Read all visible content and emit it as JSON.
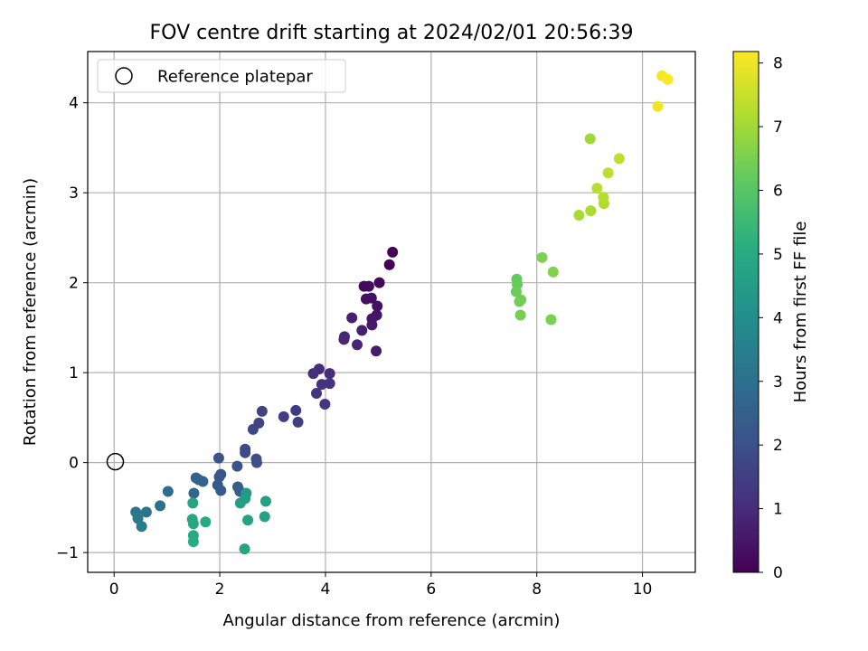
{
  "chart_data": {
    "type": "scatter",
    "title": "FOV centre drift starting at 2024/02/01 20:56:39",
    "xlabel": "Angular distance from reference (arcmin)",
    "ylabel": "Rotation from reference (arcmin)",
    "xlim": [
      -0.5,
      11
    ],
    "ylim": [
      -1.22,
      4.57
    ],
    "xticks": [
      0,
      2,
      4,
      6,
      8,
      10
    ],
    "yticks": [
      -1,
      0,
      1,
      2,
      3,
      4
    ],
    "xtick_labels": [
      "0",
      "2",
      "4",
      "6",
      "8",
      "10"
    ],
    "ytick_labels": [
      "−1",
      "0",
      "1",
      "2",
      "3",
      "4"
    ],
    "grid": true,
    "legend": {
      "placement": "upper-left",
      "entries": [
        "Reference platepar"
      ]
    },
    "reference_point": {
      "name": "Reference platepar",
      "x": 0,
      "y": 0,
      "marker": "open-circle"
    },
    "colorbar": {
      "label": "Hours from first FF file",
      "colormap": "viridis",
      "range": [
        0,
        8.18
      ],
      "ticks": [
        0,
        1,
        2,
        3,
        4,
        5,
        6,
        7,
        8
      ],
      "tick_labels": [
        "0",
        "1",
        "2",
        "3",
        "4",
        "5",
        "6",
        "7",
        "8"
      ]
    },
    "points": [
      {
        "x": 5.27,
        "y": 2.34,
        "hours": 0.05
      },
      {
        "x": 5.21,
        "y": 2.2,
        "hours": 0.1
      },
      {
        "x": 5.02,
        "y": 2.0,
        "hours": 0.15
      },
      {
        "x": 4.73,
        "y": 1.96,
        "hours": 0.2
      },
      {
        "x": 4.82,
        "y": 1.96,
        "hours": 0.25
      },
      {
        "x": 4.77,
        "y": 1.82,
        "hours": 0.3
      },
      {
        "x": 4.87,
        "y": 1.83,
        "hours": 0.35
      },
      {
        "x": 4.98,
        "y": 1.74,
        "hours": 0.4
      },
      {
        "x": 4.97,
        "y": 1.64,
        "hours": 0.45
      },
      {
        "x": 4.88,
        "y": 1.6,
        "hours": 0.5
      },
      {
        "x": 4.88,
        "y": 1.53,
        "hours": 0.55
      },
      {
        "x": 4.96,
        "y": 1.24,
        "hours": 0.6
      },
      {
        "x": 4.69,
        "y": 1.47,
        "hours": 0.7
      },
      {
        "x": 4.5,
        "y": 1.61,
        "hours": 0.75
      },
      {
        "x": 4.36,
        "y": 1.4,
        "hours": 0.8
      },
      {
        "x": 4.6,
        "y": 1.31,
        "hours": 0.85
      },
      {
        "x": 4.35,
        "y": 1.37,
        "hours": 0.9
      },
      {
        "x": 4.08,
        "y": 0.99,
        "hours": 1.0
      },
      {
        "x": 3.88,
        "y": 1.04,
        "hours": 1.05
      },
      {
        "x": 3.77,
        "y": 0.99,
        "hours": 1.1
      },
      {
        "x": 4.08,
        "y": 0.88,
        "hours": 1.15
      },
      {
        "x": 3.93,
        "y": 0.87,
        "hours": 1.2
      },
      {
        "x": 3.83,
        "y": 0.77,
        "hours": 1.25
      },
      {
        "x": 3.99,
        "y": 0.65,
        "hours": 1.3
      },
      {
        "x": 3.44,
        "y": 0.58,
        "hours": 1.4
      },
      {
        "x": 3.21,
        "y": 0.51,
        "hours": 1.45
      },
      {
        "x": 3.48,
        "y": 0.45,
        "hours": 1.5
      },
      {
        "x": 2.8,
        "y": 0.57,
        "hours": 1.6
      },
      {
        "x": 2.74,
        "y": 0.44,
        "hours": 1.65
      },
      {
        "x": 2.63,
        "y": 0.37,
        "hours": 1.7
      },
      {
        "x": 2.48,
        "y": 0.15,
        "hours": 1.8
      },
      {
        "x": 2.48,
        "y": 0.11,
        "hours": 1.85
      },
      {
        "x": 2.69,
        "y": 0.04,
        "hours": 1.9
      },
      {
        "x": 2.7,
        "y": 0.0,
        "hours": 1.95
      },
      {
        "x": 1.98,
        "y": 0.05,
        "hours": 2.05
      },
      {
        "x": 2.33,
        "y": -0.04,
        "hours": 2.1
      },
      {
        "x": 2.02,
        "y": -0.13,
        "hours": 2.15
      },
      {
        "x": 1.99,
        "y": -0.16,
        "hours": 2.2
      },
      {
        "x": 1.96,
        "y": -0.25,
        "hours": 2.25
      },
      {
        "x": 2.02,
        "y": -0.31,
        "hours": 2.3
      },
      {
        "x": 2.34,
        "y": -0.27,
        "hours": 2.35
      },
      {
        "x": 2.38,
        "y": -0.32,
        "hours": 2.4
      },
      {
        "x": 1.55,
        "y": -0.17,
        "hours": 2.5
      },
      {
        "x": 1.6,
        "y": -0.19,
        "hours": 2.55
      },
      {
        "x": 1.68,
        "y": -0.21,
        "hours": 2.6
      },
      {
        "x": 1.51,
        "y": -0.34,
        "hours": 2.7
      },
      {
        "x": 1.02,
        "y": -0.32,
        "hours": 2.9
      },
      {
        "x": 0.87,
        "y": -0.48,
        "hours": 3.0
      },
      {
        "x": 0.61,
        "y": -0.55,
        "hours": 3.1
      },
      {
        "x": 0.41,
        "y": -0.55,
        "hours": 3.2
      },
      {
        "x": 0.45,
        "y": -0.62,
        "hours": 3.3
      },
      {
        "x": 0.52,
        "y": -0.71,
        "hours": 3.4
      },
      {
        "x": 2.5,
        "y": -0.34,
        "hours": 4.4
      },
      {
        "x": 2.48,
        "y": -0.4,
        "hours": 4.5
      },
      {
        "x": 2.39,
        "y": -0.45,
        "hours": 4.55
      },
      {
        "x": 2.87,
        "y": -0.43,
        "hours": 4.6
      },
      {
        "x": 2.85,
        "y": -0.6,
        "hours": 4.65
      },
      {
        "x": 2.53,
        "y": -0.64,
        "hours": 4.7
      },
      {
        "x": 2.47,
        "y": -0.96,
        "hours": 4.75
      },
      {
        "x": 1.49,
        "y": -0.45,
        "hours": 4.8
      },
      {
        "x": 1.48,
        "y": -0.63,
        "hours": 4.85
      },
      {
        "x": 1.5,
        "y": -0.68,
        "hours": 4.9
      },
      {
        "x": 1.73,
        "y": -0.66,
        "hours": 4.95
      },
      {
        "x": 1.5,
        "y": -0.81,
        "hours": 5.0
      },
      {
        "x": 1.5,
        "y": -0.88,
        "hours": 5.05
      },
      {
        "x": 7.62,
        "y": 2.04,
        "hours": 6.2
      },
      {
        "x": 7.63,
        "y": 1.98,
        "hours": 6.25
      },
      {
        "x": 7.61,
        "y": 1.9,
        "hours": 6.3
      },
      {
        "x": 7.7,
        "y": 1.81,
        "hours": 6.35
      },
      {
        "x": 7.67,
        "y": 1.79,
        "hours": 6.4
      },
      {
        "x": 7.69,
        "y": 1.64,
        "hours": 6.45
      },
      {
        "x": 8.27,
        "y": 1.59,
        "hours": 6.5
      },
      {
        "x": 8.1,
        "y": 2.28,
        "hours": 6.55
      },
      {
        "x": 8.31,
        "y": 2.12,
        "hours": 6.6
      },
      {
        "x": 9.01,
        "y": 3.6,
        "hours": 7.0
      },
      {
        "x": 8.8,
        "y": 2.75,
        "hours": 7.1
      },
      {
        "x": 9.02,
        "y": 2.8,
        "hours": 7.15
      },
      {
        "x": 9.27,
        "y": 2.88,
        "hours": 7.2
      },
      {
        "x": 9.26,
        "y": 2.95,
        "hours": 7.25
      },
      {
        "x": 9.14,
        "y": 3.05,
        "hours": 7.3
      },
      {
        "x": 9.35,
        "y": 3.22,
        "hours": 7.35
      },
      {
        "x": 9.56,
        "y": 3.38,
        "hours": 7.4
      },
      {
        "x": 10.29,
        "y": 3.96,
        "hours": 8.0
      },
      {
        "x": 10.37,
        "y": 4.3,
        "hours": 8.1
      },
      {
        "x": 10.48,
        "y": 4.26,
        "hours": 8.15
      }
    ]
  }
}
